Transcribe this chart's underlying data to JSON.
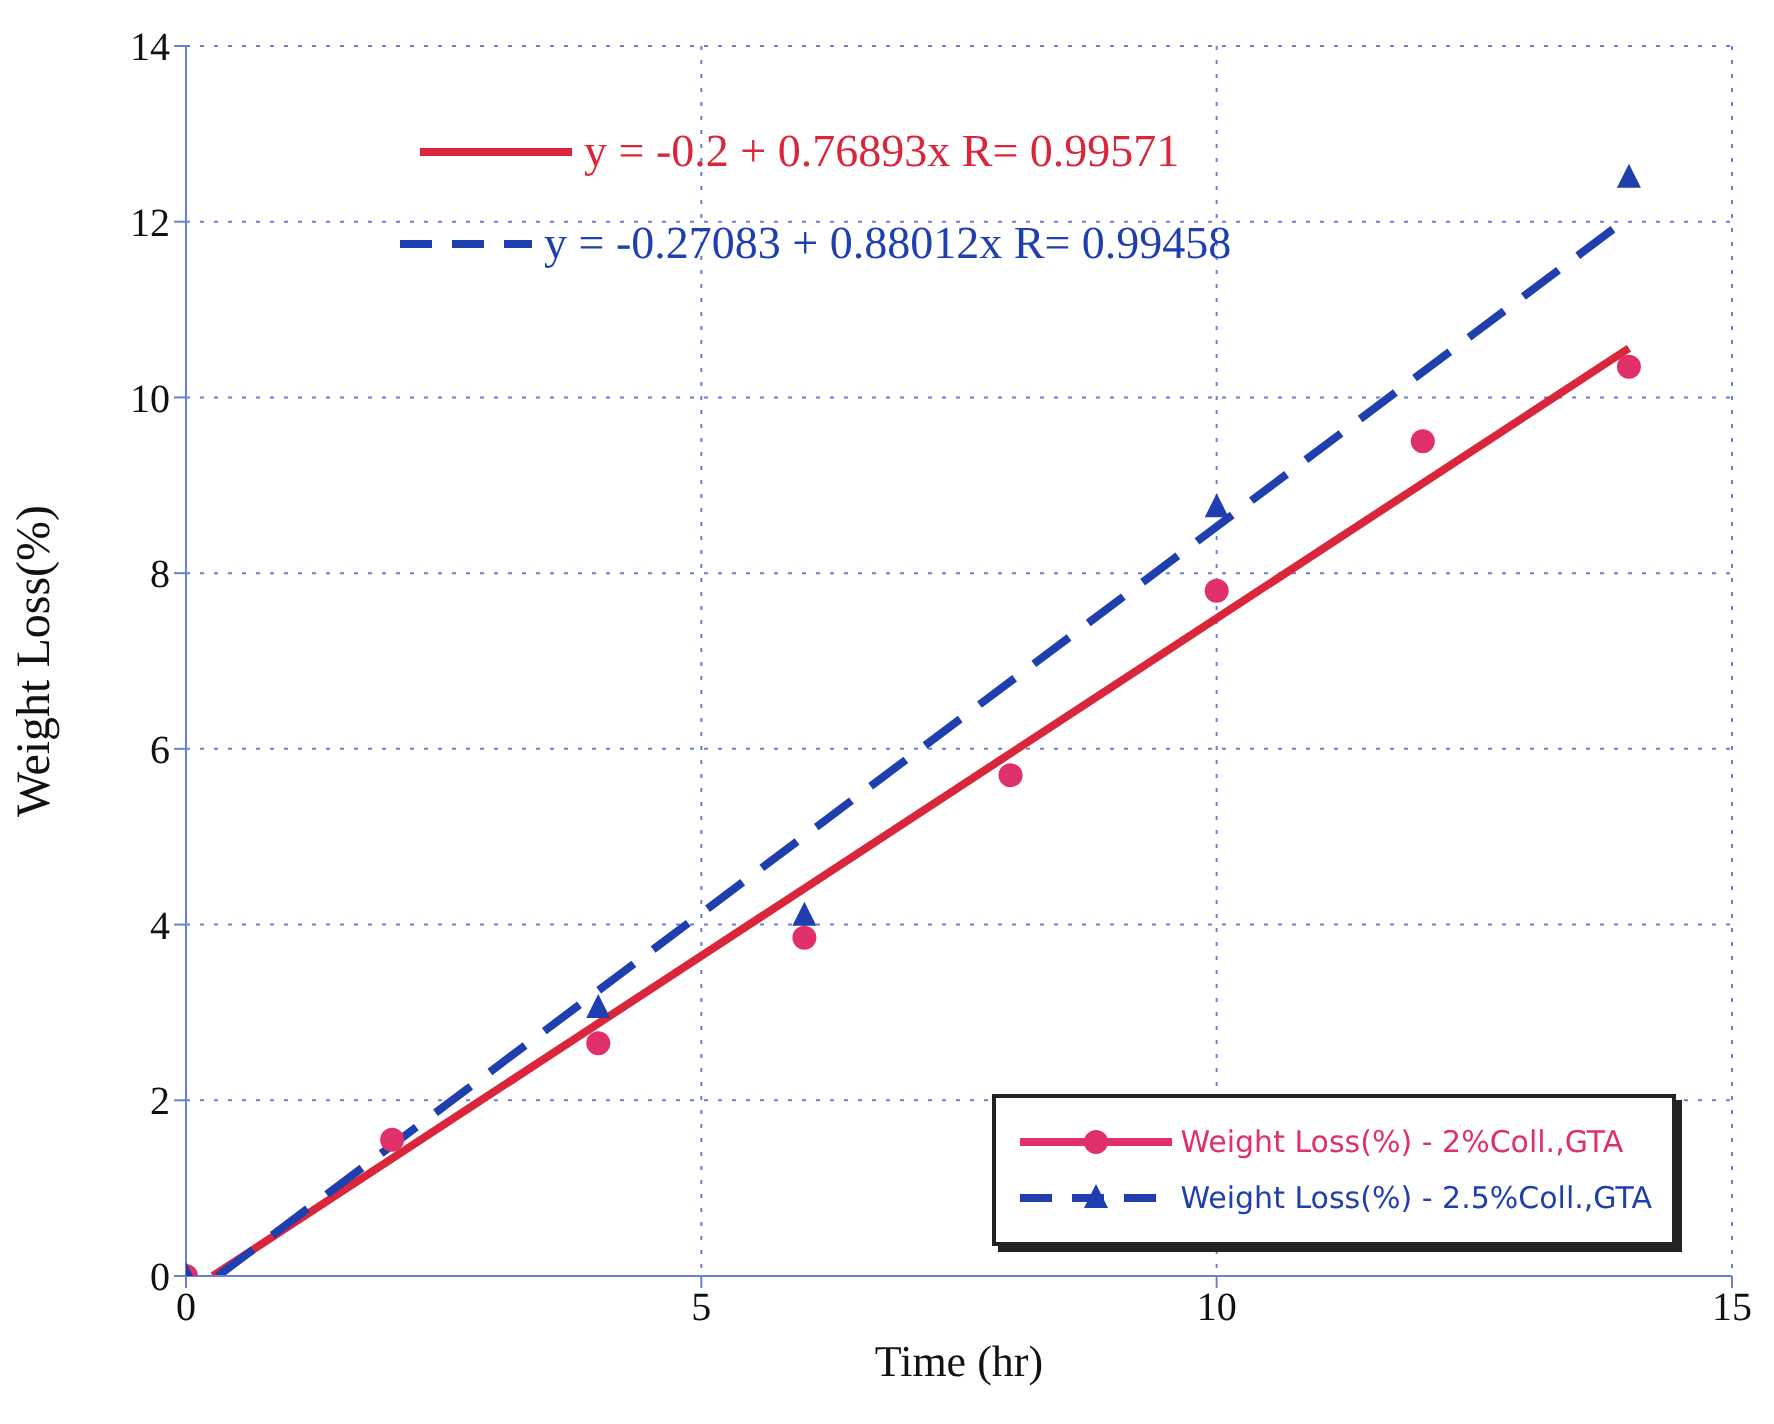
{
  "chart_data": {
    "type": "scatter",
    "xlabel": "Time (hr)",
    "ylabel": "Weight Loss(%)",
    "xlim": [
      0,
      15
    ],
    "xticks": [
      0,
      5,
      10,
      15
    ],
    "ylim": [
      0,
      14
    ],
    "yticks": [
      0,
      2,
      4,
      6,
      8,
      10,
      12,
      14
    ],
    "grid": true,
    "legend": "bottom right",
    "series": [
      {
        "name": "Weight Loss(%) - 2%Coll.,GTA",
        "color": "#e0306a",
        "marker": "circle",
        "line_style": "solid",
        "x": [
          0,
          2,
          4,
          6,
          8,
          10,
          12,
          14
        ],
        "values": [
          0,
          1.55,
          2.65,
          3.85,
          5.7,
          7.8,
          9.5,
          10.35
        ]
      },
      {
        "name": "Weight Loss(%) - 2.5%Coll.,GTA",
        "color": "#1f3fae",
        "marker": "triangle",
        "line_style": "dashed",
        "x": [
          0,
          4,
          6,
          10,
          14
        ],
        "values": [
          0,
          3.05,
          4.1,
          8.75,
          12.5
        ]
      },
      {
        "name": "y = -0.2 + 0.76893x R= 0.99571",
        "type": "line",
        "color": "#d9263a",
        "marker": "none",
        "line_style": "solid",
        "x": [
          0.26,
          14
        ],
        "values": [
          0,
          10.56
        ]
      },
      {
        "name": "y = -0.27083 + 0.88012x R= 0.99458",
        "type": "line",
        "color": "#1f3fae",
        "marker": "none",
        "line_style": "dashed",
        "x": [
          0.31,
          14
        ],
        "values": [
          0,
          12.05
        ]
      }
    ]
  }
}
